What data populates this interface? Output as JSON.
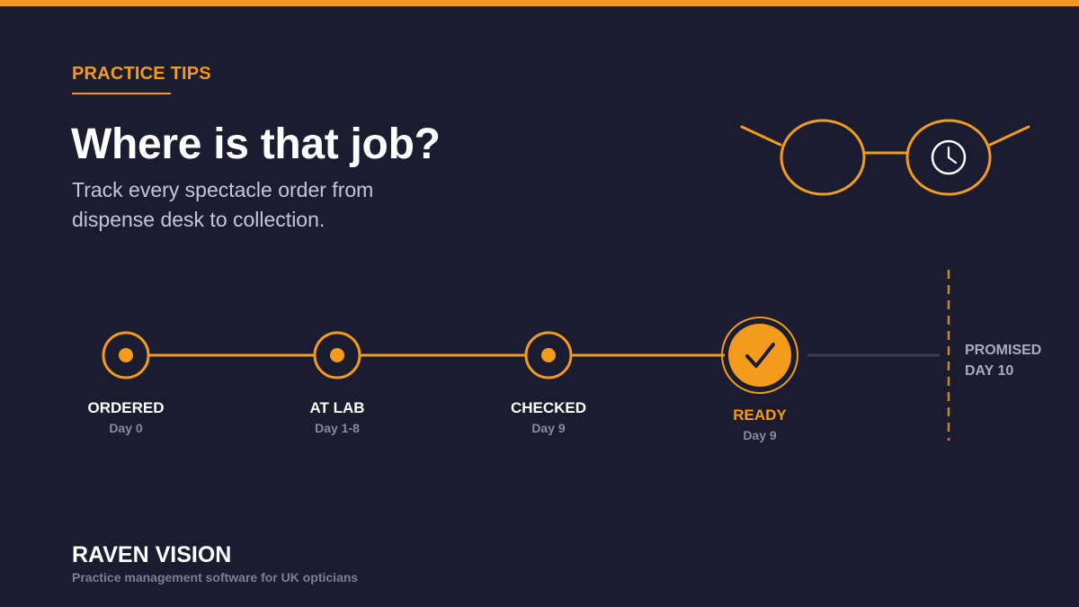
{
  "header": {
    "eyebrow": "PRACTICE TIPS",
    "title": "Where is that job?",
    "subtitle": "Track every spectacle order from dispense desk to collection."
  },
  "timeline": {
    "stages": [
      {
        "label": "ORDERED",
        "day": "Day 0",
        "status": "done"
      },
      {
        "label": "AT LAB",
        "day": "Day 1-8",
        "status": "done"
      },
      {
        "label": "CHECKED",
        "day": "Day 9",
        "status": "done"
      },
      {
        "label": "READY",
        "day": "Day 9",
        "status": "current"
      }
    ],
    "deadline": {
      "line1": "PROMISED",
      "line2": "DAY 10"
    }
  },
  "footer": {
    "brand": "RAVEN VISION",
    "tagline": "Practice management software for UK opticians"
  },
  "icons": {
    "illustration": "glasses-with-clock-icon",
    "stage_done": "filled-dot-icon",
    "stage_current": "check-icon"
  },
  "colors": {
    "background": "#1b1c2f",
    "accent": "#f29b1d",
    "text": "#ffffff",
    "muted": "#878aa3",
    "pending_line": "#3b3d55"
  }
}
